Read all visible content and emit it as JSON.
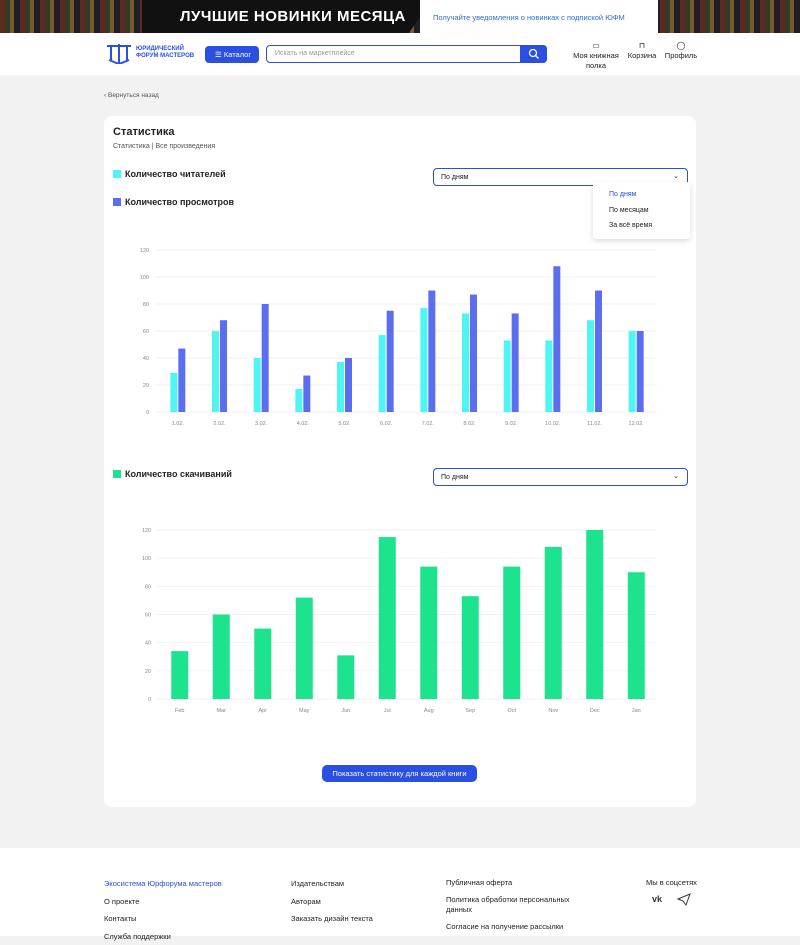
{
  "banner": {
    "headline": "ЛУЧШИЕ НОВИНКИ МЕСЯЦА",
    "promo": "Получайте уведомления о новинках с подпиской ЮФМ"
  },
  "header": {
    "logo_text": [
      "ЮРИДИЧЕСКИЙ",
      "ФОРУМ МАСТЕРОВ"
    ],
    "catalog": "Каталог",
    "search_placeholder": "Искать на маркетплейсе",
    "nav": [
      "Моя книжная полка",
      "Корзина",
      "Профиль"
    ]
  },
  "page": {
    "back": "Вернуться назад",
    "title": "Статистика",
    "breadcrumb": [
      "Статистика",
      "Все произведения"
    ],
    "select1": "По дням",
    "options": [
      "По дням",
      "По месяцам",
      "За всё время"
    ],
    "select2": "По дням",
    "button": "Показать статистику для каждой книги"
  },
  "chart_data": [
    {
      "type": "bar",
      "categories": [
        "1.02.",
        "2.02.",
        "3.02.",
        "4.02.",
        "5.02.",
        "6.02.",
        "7.02.",
        "8.02.",
        "9.02.",
        "10.02.",
        "11.02.",
        "12.02."
      ],
      "series": [
        {
          "name": "Количество читателей",
          "color": "#4ef5f2",
          "values": [
            29,
            60,
            40,
            17,
            37,
            57,
            77,
            73,
            53,
            53,
            68,
            60
          ]
        },
        {
          "name": "Количество просмотров",
          "color": "#5b6ef0",
          "values": [
            47,
            68,
            80,
            27,
            40,
            75,
            90,
            87,
            73,
            108,
            90,
            60
          ]
        }
      ],
      "ylim": [
        0,
        120
      ],
      "yticks": [
        0,
        20,
        40,
        60,
        80,
        100,
        120
      ],
      "grid": true
    },
    {
      "type": "bar",
      "categories": [
        "Feb",
        "Mar",
        "Apr",
        "May",
        "Jun",
        "Jul",
        "Aug",
        "Sep",
        "Oct",
        "Nov",
        "Dec",
        "Jan"
      ],
      "series": [
        {
          "name": "Количество скачиваний",
          "color": "#1de28e",
          "values": [
            34,
            60,
            50,
            72,
            31,
            115,
            94,
            73,
            94,
            108,
            120,
            90
          ]
        }
      ],
      "ylim": [
        0,
        120
      ],
      "yticks": [
        0,
        20,
        40,
        60,
        80,
        100,
        120
      ],
      "grid": true
    }
  ],
  "footer": {
    "columns": [
      [
        "Экосистема Юрфорума мастеров",
        "О проекте",
        "Контакты",
        "Служба поддержки"
      ],
      [
        "Издательствам",
        "Авторам",
        "Заказать дизайн текста"
      ],
      [
        "Публичная оферта",
        "Политика обработки персональных данных",
        "Согласие на получение рассылки"
      ]
    ],
    "social_title": "Мы в соцсетях"
  }
}
